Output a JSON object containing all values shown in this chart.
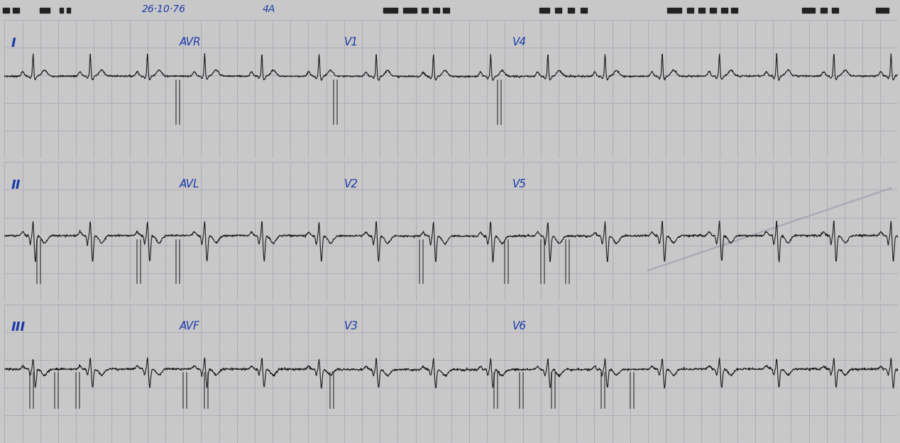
{
  "bg_color": "#c8c8c8",
  "strip_bg": "#f5f5f0",
  "grid_minor_color": "#d0c8d0",
  "grid_major_color": "#b0a8b8",
  "ecg_color": "#222222",
  "label_color": "#1a3aaa",
  "header_bg": "#d0d0d0",
  "strip1_label": "I",
  "strip2_label": "II",
  "strip3_label": "III",
  "strip1_sublabels": [
    "AVR",
    "V1",
    "V4"
  ],
  "strip2_sublabels": [
    "AVL",
    "V2",
    "V5"
  ],
  "strip3_sublabels": [
    "AVF",
    "V3",
    "V6"
  ],
  "header_date": "26·10·76",
  "header_id": "4A",
  "n_pts": 2500
}
